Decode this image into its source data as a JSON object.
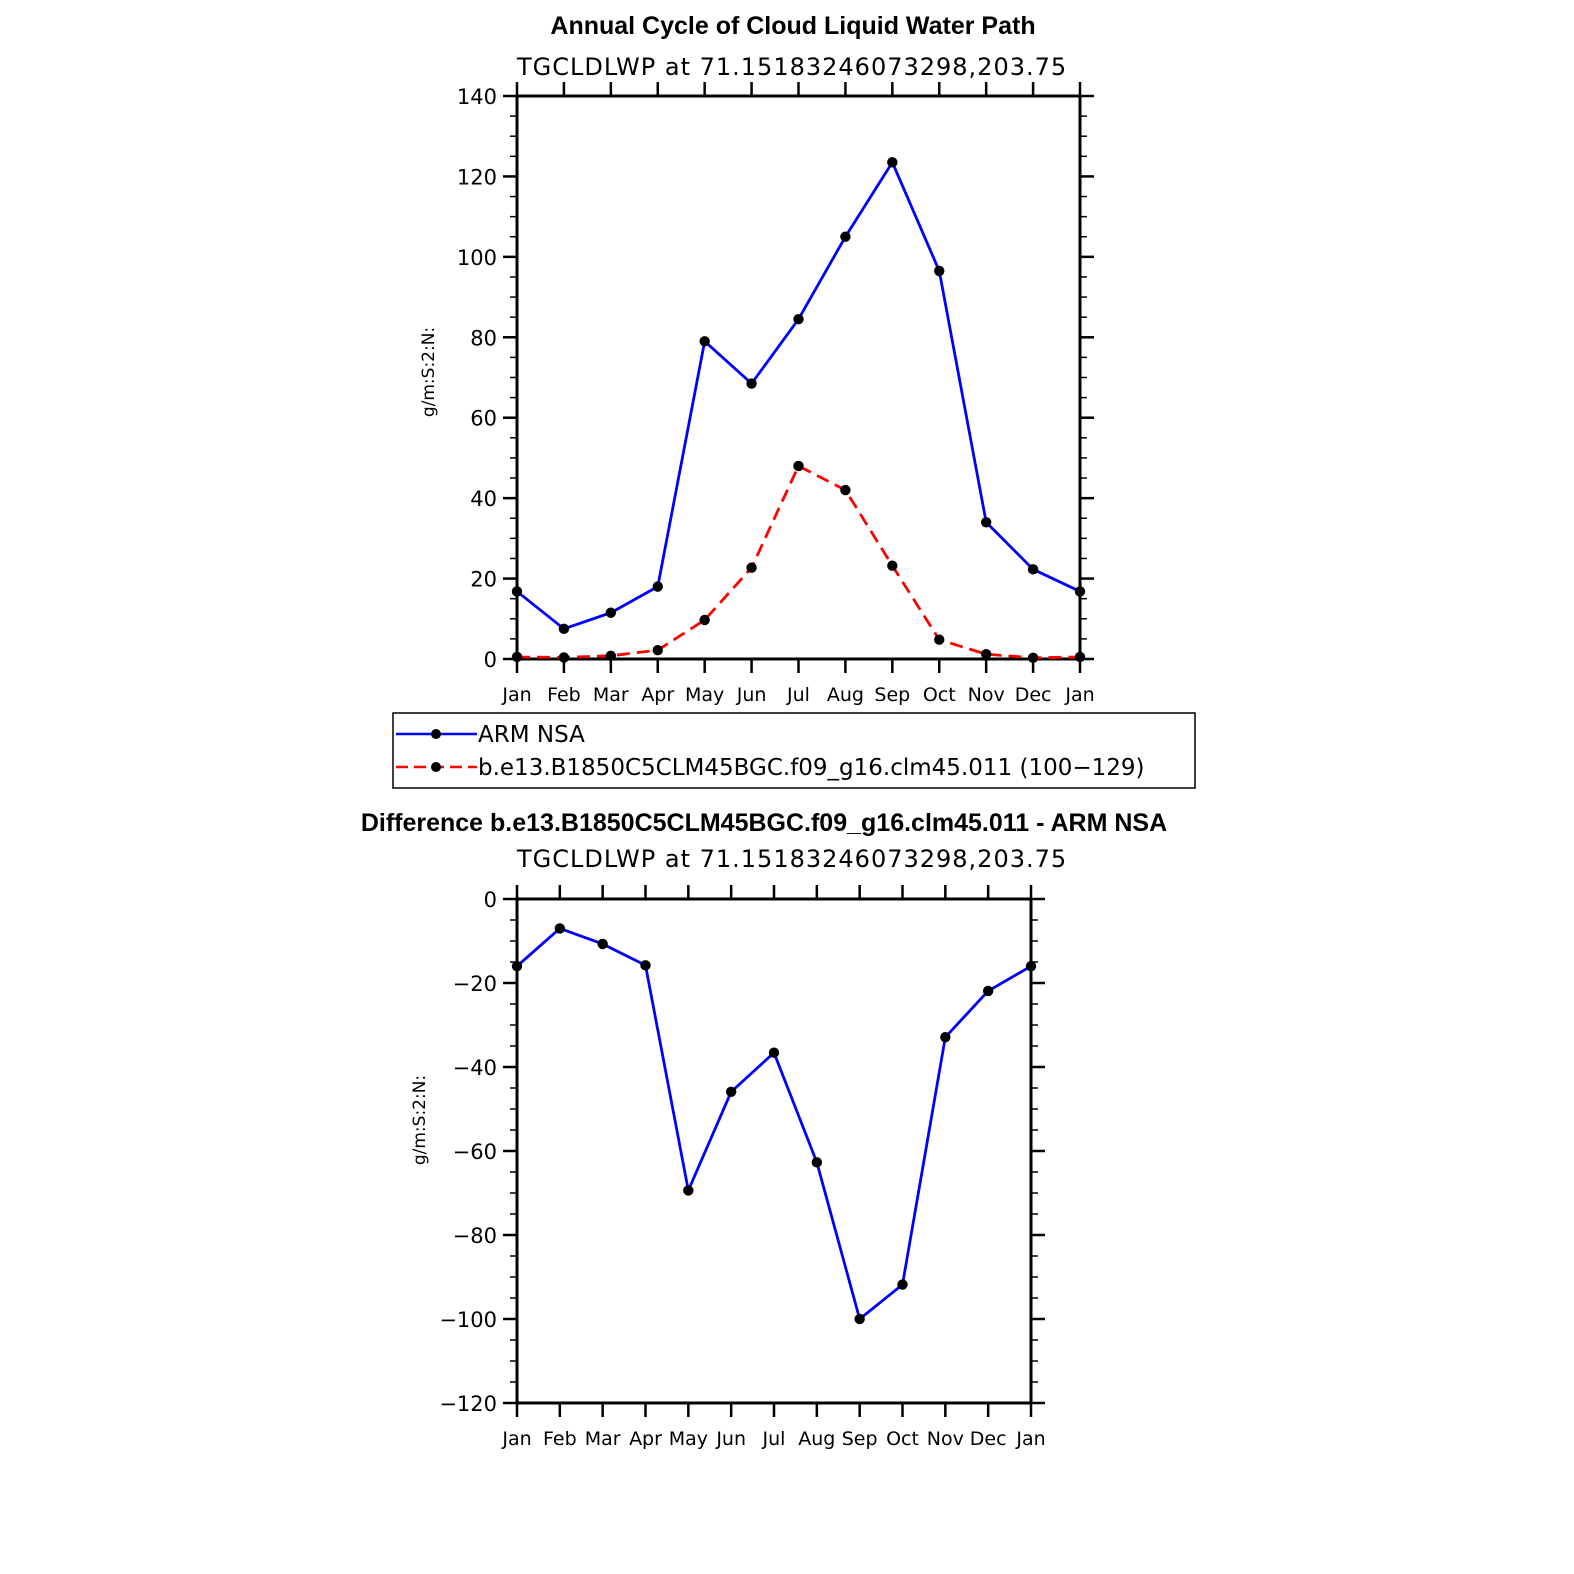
{
  "chart_data": [
    {
      "type": "line",
      "title": "Annual Cycle of Cloud Liquid Water Path",
      "subtitle": "TGCLDLWP at 71.15183246073298,203.75",
      "xlabel": "",
      "ylabel": "g/m:S:2:N:",
      "categories": [
        "Jan",
        "Feb",
        "Mar",
        "Apr",
        "May",
        "Jun",
        "Jul",
        "Aug",
        "Sep",
        "Oct",
        "Nov",
        "Dec",
        "Jan"
      ],
      "ylim": [
        0,
        140
      ],
      "yticks": [
        0,
        20,
        40,
        60,
        80,
        100,
        120,
        140
      ],
      "grid": false,
      "legend_position": "bottom",
      "series": [
        {
          "name": "ARM NSA",
          "color": "#0000ff",
          "dash": "solid",
          "values": [
            16.8,
            7.5,
            11.5,
            18.0,
            79.0,
            68.5,
            84.5,
            105.0,
            123.5,
            96.5,
            34.0,
            22.3,
            16.8
          ]
        },
        {
          "name": "b.e13.B1850C5CLM45BGC.f09_g16.clm45.011 (100−129)",
          "color": "#ff0000",
          "dash": "dashed",
          "values": [
            0.5,
            0.4,
            0.8,
            2.2,
            9.7,
            22.7,
            48.0,
            42.0,
            23.2,
            4.8,
            1.2,
            0.3,
            0.5
          ]
        }
      ]
    },
    {
      "type": "line",
      "title": "Difference b.e13.B1850C5CLM45BGC.f09_g16.clm45.011 - ARM NSA",
      "subtitle": "TGCLDLWP at 71.15183246073298,203.75",
      "xlabel": "",
      "ylabel": "g/m:S:2:N:",
      "categories": [
        "Jan",
        "Feb",
        "Mar",
        "Apr",
        "May",
        "Jun",
        "Jul",
        "Aug",
        "Sep",
        "Oct",
        "Nov",
        "Dec",
        "Jan"
      ],
      "ylim": [
        -120,
        0
      ],
      "yticks": [
        -120,
        -100,
        -80,
        -60,
        -40,
        -20,
        0
      ],
      "ytick_labels": [
        "−120",
        "−100",
        "−80",
        "−60",
        "−40",
        "−20",
        "0"
      ],
      "grid": false,
      "series": [
        {
          "name": "Difference",
          "color": "#0000ff",
          "dash": "solid",
          "values": [
            -16.0,
            -7.0,
            -10.7,
            -15.8,
            -69.4,
            -45.9,
            -36.6,
            -62.7,
            -100.0,
            -91.8,
            -32.9,
            -21.9,
            -16.0
          ]
        }
      ]
    }
  ]
}
